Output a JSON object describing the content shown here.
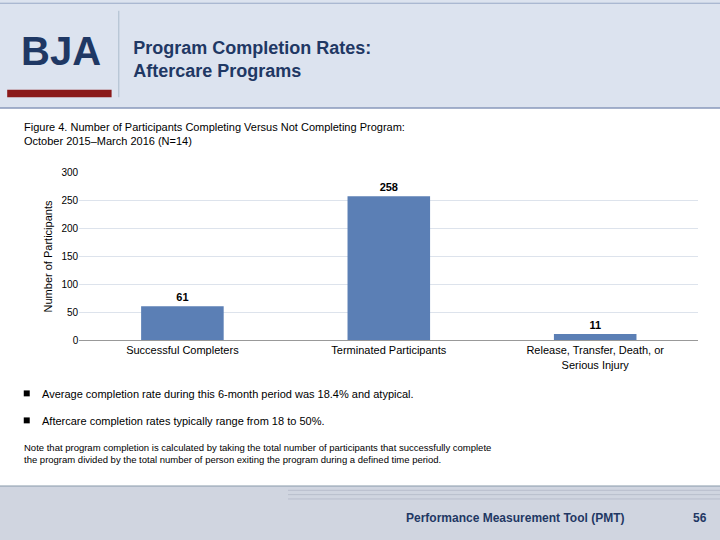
{
  "chart_data": {
    "type": "bar",
    "title": "Program Completion Rates:\nAftercare Programs",
    "subtitle": "Figure 4. Number of Participants Completing Versus Not Completing Program:\nOctober 2015–March 2016 (N=14)",
    "categories": [
      "Successful Completers",
      "Terminated Participants",
      "Release, Transfer, Death, or\nSerious Injury"
    ],
    "values": [
      61,
      258,
      11
    ],
    "color": "#5b7fb5",
    "ylabel": "Number of Participants",
    "ylim": [
      0,
      300
    ],
    "yticks": [
      0,
      50,
      100,
      150,
      200,
      250,
      300
    ],
    "grid": true,
    "data_labels": true,
    "annotations": [
      "BJA",
      "Average completion rate during this 6-month period was 18.4% and atypical.",
      "Aftercare completion rates typically range from 18 to 50%.",
      "Note that program completion is calculated by taking the total number of participants that successfully complete\nthe program divided by the total number of person exiting the program during a defined time period.",
      "Performance Measurement Tool (PMT)",
      "56"
    ]
  }
}
